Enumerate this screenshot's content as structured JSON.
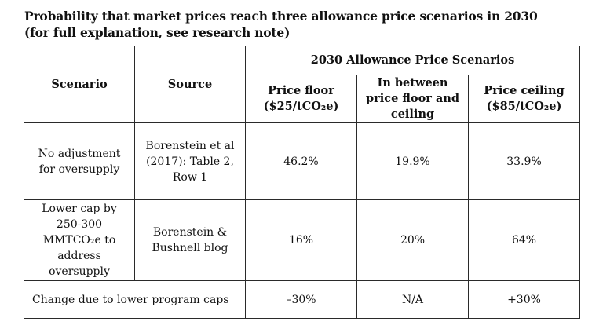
{
  "title": {
    "line1": "Probability that market prices reach three allowance price scenarios in 2030",
    "line2": "(for full explanation, see research note)"
  },
  "table": {
    "headers": {
      "scenario": "Scenario",
      "source": "Source",
      "group": "2030 Allowance Price Scenarios",
      "floor": "Price floor ($25/tCO₂e)",
      "between": "In between price floor and ceiling",
      "ceiling": "Price ceiling ($85/tCO₂e)"
    },
    "rows": [
      {
        "scenario": "No adjustment for oversupply",
        "source": "Borenstein et al (2017): Table 2, Row 1",
        "floor": "46.2%",
        "between": "19.9%",
        "ceiling": "33.9%"
      },
      {
        "scenario": "Lower cap by 250-300 MMTCO₂e to address oversupply",
        "source": "Borenstein & Bushnell blog",
        "floor": "16%",
        "between": "20%",
        "ceiling": "64%"
      }
    ],
    "change": {
      "label": "Change due to lower program caps",
      "floor": "–30%",
      "between": "N/A",
      "ceiling": "+30%"
    }
  }
}
